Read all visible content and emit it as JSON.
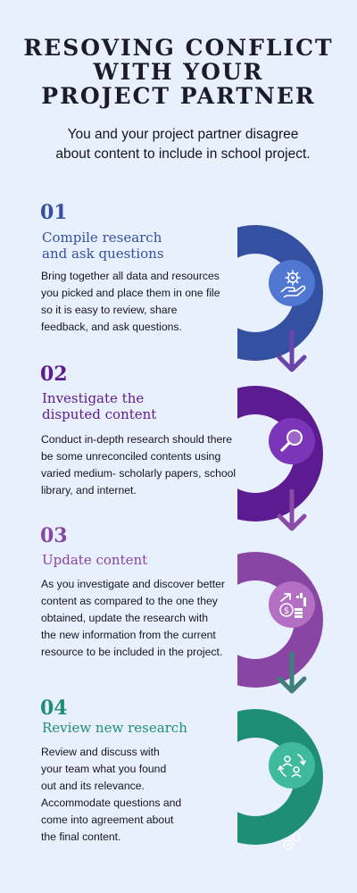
{
  "title_lines": [
    "RESOVING CONFLICT",
    "WITH YOUR",
    "PROJECT PARTNER"
  ],
  "subtitle_lines": [
    "You and your project partner disagree",
    "about content to include in school project."
  ],
  "colors": {
    "background": "#e9f0fd",
    "step1": "#3450a1",
    "step2": "#5d1b91",
    "step3": "#8845a3",
    "step4": "#1e8f75"
  },
  "steps": [
    {
      "number": "01",
      "heading_lines": [
        "Compile research",
        "and ask questions"
      ],
      "body_lines": [
        "Bring together all data and resources",
        "you picked and place them in one file",
        "so it is easy to review, share",
        "feedback, and ask questions."
      ],
      "icon": "hand-gear-icon"
    },
    {
      "number": "02",
      "heading_lines": [
        "Investigate the",
        "disputed content"
      ],
      "body_lines": [
        "Conduct in-depth research should there",
        "be some unreconciled contents using",
        "varied medium-  scholarly papers, school",
        "library, and internet."
      ],
      "icon": "magnifier-icon"
    },
    {
      "number": "03",
      "heading_lines": [
        "Update content"
      ],
      "body_lines": [
        "As you investigate and discover  better",
        "content as compared to the one they",
        "obtained, update the  research with",
        "the new information from the current",
        "resource to be included in the project."
      ],
      "icon": "growth-coins-icon"
    },
    {
      "number": "04",
      "heading_lines": [
        "Review new research"
      ],
      "body_lines": [
        "Review and discuss with",
        "your team what you found",
        "out and its relevance.",
        "Accommodate questions and",
        "come into agreement about",
        "the final content."
      ],
      "icon": "exchange-people-icon"
    }
  ]
}
